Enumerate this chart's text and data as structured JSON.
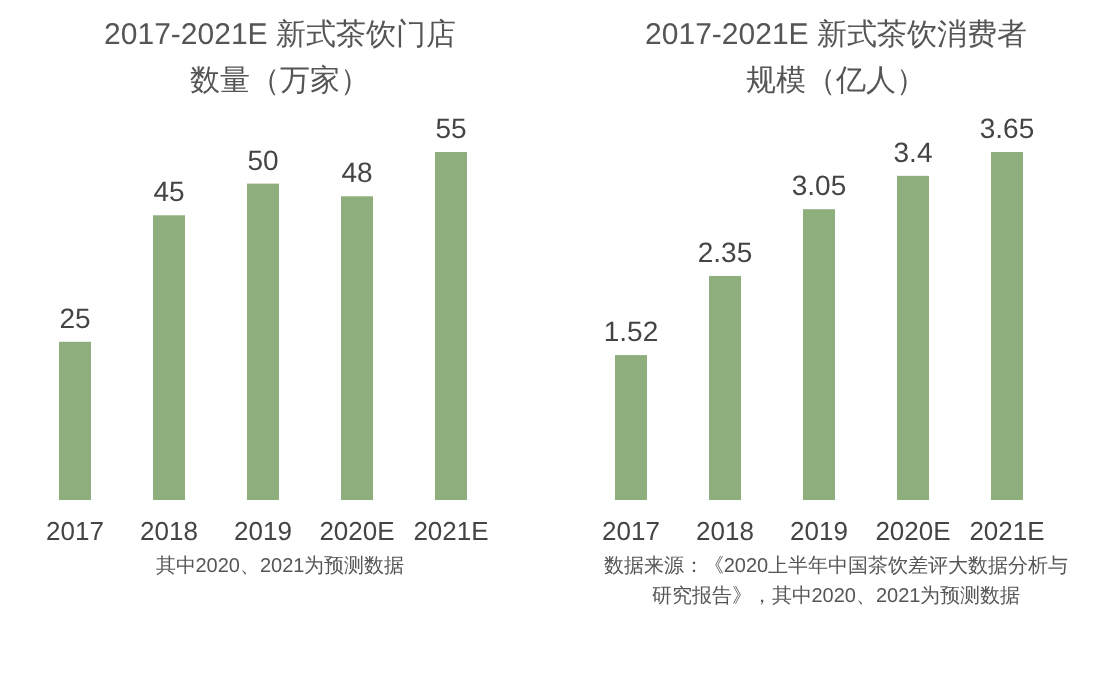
{
  "chart_data": [
    {
      "type": "bar",
      "title": "2017-2021E 新式茶饮门店",
      "subtitle": "数量（万家）",
      "categories": [
        "2017",
        "2018",
        "2019",
        "2020E",
        "2021E"
      ],
      "values": [
        25,
        45,
        50,
        48,
        55
      ],
      "color": "#8fae7d",
      "data_labels": true,
      "annotations": [
        "其中2020、2021为预测数据"
      ]
    },
    {
      "type": "bar",
      "title": "2017-2021E 新式茶饮消费者",
      "subtitle": "规模（亿人）",
      "categories": [
        "2017",
        "2018",
        "2019",
        "2020E",
        "2021E"
      ],
      "values": [
        1.52,
        2.35,
        3.05,
        3.4,
        3.65
      ],
      "color": "#8fae7d",
      "data_labels": true,
      "annotations": [
        "数据来源：《2020上半年中国茶饮差评大数据分析与研究报告》，其中2020、2021为预测数据"
      ]
    }
  ]
}
